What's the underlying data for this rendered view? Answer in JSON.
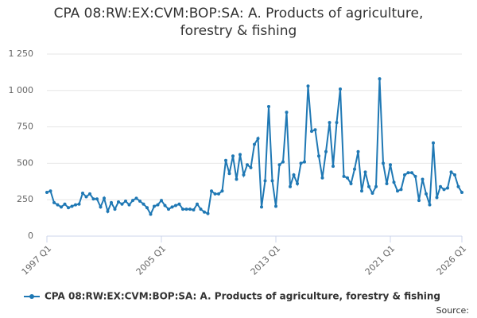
{
  "chart_data": {
    "type": "line",
    "title": "CPA 08:RW:EX:CVM:BOP:SA: A. Products of agriculture, forestry & fishing",
    "categories": [
      "1997 Q1",
      null,
      null,
      null,
      null,
      null,
      null,
      null,
      null,
      null,
      null,
      null,
      null,
      null,
      null,
      null,
      null,
      null,
      null,
      null,
      null,
      null,
      null,
      null,
      null,
      null,
      null,
      null,
      null,
      null,
      null,
      null,
      "2005 Q1",
      null,
      null,
      null,
      null,
      null,
      null,
      null,
      null,
      null,
      null,
      null,
      null,
      null,
      null,
      null,
      null,
      null,
      null,
      null,
      null,
      null,
      null,
      null,
      null,
      null,
      null,
      null,
      null,
      null,
      null,
      null,
      "2013 Q1",
      null,
      null,
      null,
      null,
      null,
      null,
      null,
      null,
      null,
      null,
      null,
      null,
      null,
      null,
      null,
      null,
      null,
      null,
      null,
      null,
      null,
      null,
      null,
      null,
      null,
      null,
      null,
      null,
      null,
      null,
      null,
      "2021 Q1",
      null,
      null,
      null,
      null,
      null,
      null,
      null,
      null,
      null,
      null,
      null,
      null,
      null,
      null,
      null,
      null,
      null,
      null,
      null,
      "2026 Q1"
    ],
    "series": [
      {
        "name": "CPA 08:RW:EX:CVM:BOP:SA: A. Products of agriculture, forestry & fishing",
        "color": "#1f78b4",
        "values": [
          300,
          310,
          230,
          215,
          200,
          220,
          195,
          205,
          215,
          220,
          295,
          270,
          290,
          255,
          255,
          200,
          260,
          170,
          230,
          185,
          235,
          220,
          240,
          215,
          245,
          260,
          240,
          220,
          195,
          150,
          205,
          215,
          245,
          210,
          185,
          200,
          210,
          220,
          185,
          185,
          185,
          180,
          220,
          185,
          165,
          155,
          310,
          290,
          290,
          310,
          520,
          430,
          550,
          390,
          560,
          420,
          490,
          470,
          630,
          670,
          200,
          380,
          890,
          380,
          205,
          490,
          510,
          850,
          340,
          420,
          360,
          500,
          510,
          1030,
          720,
          730,
          550,
          400,
          580,
          780,
          480,
          780,
          1010,
          410,
          400,
          360,
          460,
          580,
          310,
          440,
          340,
          295,
          340,
          1080,
          500,
          360,
          490,
          370,
          310,
          320,
          420,
          435,
          435,
          410,
          245,
          390,
          290,
          215,
          640,
          265,
          340,
          320,
          330,
          440,
          420,
          340,
          300
        ]
      }
    ],
    "ylim": [
      0,
      1250
    ],
    "yticks": [
      0,
      250,
      500,
      750,
      {
        "value": 1000,
        "label": "1 000"
      },
      {
        "value": 1250,
        "label": "1 250"
      }
    ],
    "grid": true,
    "source": "Source:"
  }
}
